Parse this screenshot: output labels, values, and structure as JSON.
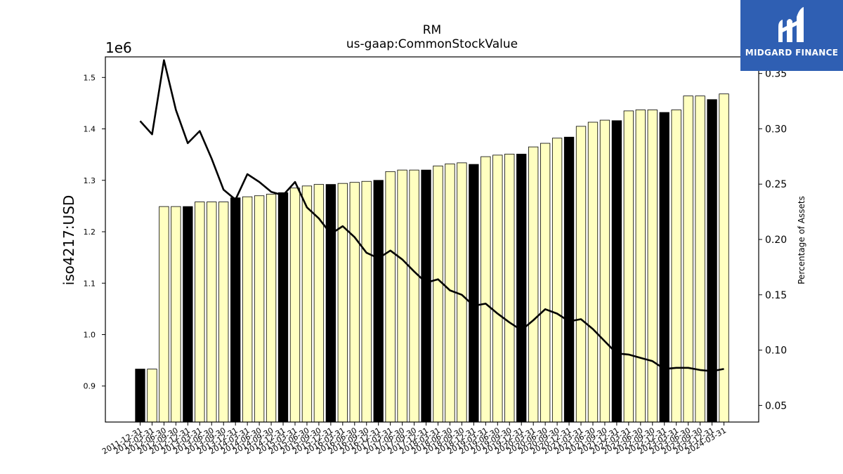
{
  "logo": {
    "text": "MIDGARD FINANCE",
    "color": "#2f5fb3"
  },
  "chart_data": {
    "type": "bar",
    "title": "RM",
    "subtitle": "us-gaap:CommonStockValue",
    "ylabel": "iso4217:USD",
    "y_offset_label": "1e6",
    "y2label": "Percentage of Assets",
    "ylim": [
      0.83,
      1.54
    ],
    "y2lim": [
      0.035,
      0.365
    ],
    "yticks": [
      0.9,
      1.0,
      1.1,
      1.2,
      1.3,
      1.4,
      1.5
    ],
    "y2ticks": [
      0.05,
      0.1,
      0.15,
      0.2,
      0.25,
      0.3,
      0.35
    ],
    "grid": false,
    "legend": "none",
    "categories": [
      "2011-12-31",
      "2012-03-31",
      "2012-06-30",
      "2012-09-30",
      "2012-12-31",
      "2013-03-31",
      "2013-06-30",
      "2013-09-30",
      "2013-12-31",
      "2014-03-31",
      "2014-06-30",
      "2014-09-30",
      "2014-12-31",
      "2015-03-31",
      "2015-06-30",
      "2015-09-30",
      "2015-12-31",
      "2016-03-31",
      "2016-06-30",
      "2016-09-30",
      "2016-12-31",
      "2017-03-31",
      "2017-06-30",
      "2017-09-30",
      "2017-12-31",
      "2018-03-31",
      "2018-06-30",
      "2018-09-30",
      "2018-12-31",
      "2019-03-31",
      "2019-06-30",
      "2019-09-30",
      "2019-12-31",
      "2020-03-31",
      "2020-06-30",
      "2020-09-30",
      "2020-12-31",
      "2021-03-31",
      "2021-06-30",
      "2021-09-30",
      "2021-12-31",
      "2022-03-31",
      "2022-06-30",
      "2022-09-30",
      "2022-12-31",
      "2023-03-31",
      "2023-06-30",
      "2023-09-30",
      "2023-12-31",
      "2024-03-31"
    ],
    "series": [
      {
        "type": "bar",
        "values": [
          0.933,
          0.933,
          1.249,
          1.249,
          1.249,
          1.258,
          1.258,
          1.258,
          1.266,
          1.268,
          1.27,
          1.273,
          1.276,
          1.285,
          1.289,
          1.292,
          1.292,
          1.294,
          1.296,
          1.298,
          1.3,
          1.317,
          1.32,
          1.32,
          1.32,
          1.328,
          1.332,
          1.334,
          1.331,
          1.346,
          1.349,
          1.351,
          1.351,
          1.365,
          1.372,
          1.382,
          1.384,
          1.405,
          1.413,
          1.417,
          1.416,
          1.435,
          1.437,
          1.437,
          1.432,
          1.437,
          1.464,
          1.464,
          1.457,
          1.468
        ],
        "bar_colors": [
          "#000000",
          "#ffffc0",
          "#ffffc0",
          "#ffffc0",
          "#000000",
          "#ffffc0",
          "#ffffc0",
          "#ffffc0",
          "#000000",
          "#ffffc0",
          "#ffffc0",
          "#ffffc0",
          "#000000",
          "#ffffc0",
          "#ffffc0",
          "#ffffc0",
          "#000000",
          "#ffffc0",
          "#ffffc0",
          "#ffffc0",
          "#000000",
          "#ffffc0",
          "#ffffc0",
          "#ffffc0",
          "#000000",
          "#ffffc0",
          "#ffffc0",
          "#ffffc0",
          "#000000",
          "#ffffc0",
          "#ffffc0",
          "#ffffc0",
          "#000000",
          "#ffffc0",
          "#ffffc0",
          "#ffffc0",
          "#000000",
          "#ffffc0",
          "#ffffc0",
          "#ffffc0",
          "#000000",
          "#ffffc0",
          "#ffffc0",
          "#ffffc0",
          "#000000",
          "#ffffc0",
          "#ffffc0",
          "#ffffc0",
          "#000000",
          "#ffffc0"
        ]
      },
      {
        "type": "line",
        "axis": "right",
        "color": "#000000",
        "values": [
          0.307,
          0.295,
          0.362,
          0.317,
          0.287,
          0.298,
          0.273,
          0.245,
          0.236,
          0.259,
          0.252,
          0.243,
          0.24,
          0.252,
          0.229,
          0.219,
          0.205,
          0.212,
          0.202,
          0.188,
          0.183,
          0.19,
          0.182,
          0.171,
          0.161,
          0.164,
          0.154,
          0.15,
          0.14,
          0.142,
          0.133,
          0.125,
          0.118,
          0.127,
          0.137,
          0.133,
          0.126,
          0.128,
          0.119,
          0.108,
          0.097,
          0.096,
          0.093,
          0.09,
          0.083,
          0.084,
          0.084,
          0.082,
          0.081,
          0.083
        ]
      }
    ]
  }
}
